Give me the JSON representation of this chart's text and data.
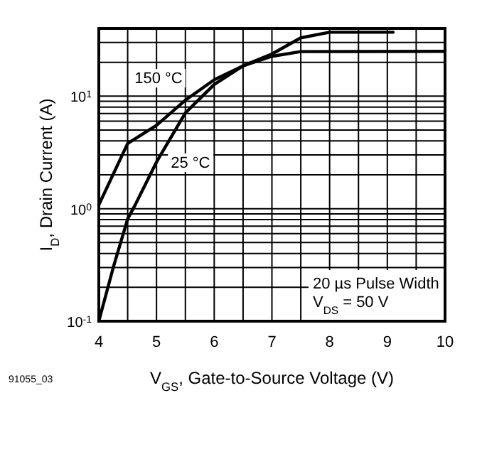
{
  "chart_data": {
    "type": "line",
    "xlabel": "V$_{GS}$, Gate-to-Source Voltage (V)",
    "ylabel": "I$_{D}$, Drain Current (A)",
    "log": "y",
    "grid": true,
    "line_style": "solid",
    "xlim": [
      4,
      10
    ],
    "ylim": [
      0.1,
      40
    ],
    "xticks": [
      4,
      {
        "value": 4.5,
        "label": null
      },
      5,
      {
        "value": 5.5,
        "label": null
      },
      6,
      {
        "value": 6.5,
        "label": null
      },
      7,
      {
        "value": 7.5,
        "label": null
      },
      8,
      {
        "value": 8.5,
        "label": null
      },
      9,
      {
        "value": 9.5,
        "label": null
      },
      10
    ],
    "yticks": [
      {
        "value": 0.1,
        "label": "10$^{-1}$"
      },
      {
        "value": 0.2,
        "label": null
      },
      {
        "value": 0.3,
        "label": null
      },
      {
        "value": 0.4,
        "label": null
      },
      {
        "value": 0.5,
        "label": null
      },
      {
        "value": 0.6,
        "label": null
      },
      {
        "value": 0.7,
        "label": null
      },
      {
        "value": 0.8,
        "label": null
      },
      {
        "value": 0.9,
        "label": null
      },
      {
        "value": 1,
        "label": "10$^{0}$"
      },
      {
        "value": 2,
        "label": null
      },
      {
        "value": 3,
        "label": null
      },
      {
        "value": 4,
        "label": null
      },
      {
        "value": 5,
        "label": null
      },
      {
        "value": 6,
        "label": null
      },
      {
        "value": 7,
        "label": null
      },
      {
        "value": 8,
        "label": null
      },
      {
        "value": 9,
        "label": null
      },
      {
        "value": 10,
        "label": "10$^{1}$"
      },
      {
        "value": 20,
        "label": null
      },
      {
        "value": 30,
        "label": null
      },
      {
        "value": 40,
        "label": null
      }
    ],
    "series": [
      {
        "name": "150 °C",
        "color": "#000000",
        "x": [
          4,
          4.5,
          5,
          5.5,
          6,
          6.5,
          7,
          7.5,
          8,
          9.1
        ],
        "values": [
          1.08,
          3.8,
          5.5,
          9.2,
          14,
          18.6,
          23.7,
          33,
          37,
          37
        ]
      },
      {
        "name": "25 °C",
        "color": "#000000",
        "x": [
          4,
          4.25,
          4.5,
          4.63,
          5,
          5.5,
          6,
          6.5,
          7,
          7.5,
          10
        ],
        "values": [
          0.1,
          0.3,
          0.81,
          1.08,
          2.6,
          7.1,
          12.7,
          18.6,
          22.6,
          24.9,
          25
        ]
      }
    ],
    "annotations": [
      "20 µs Pulse Width",
      "V$_{DS}$ = 50 V",
      "91055_03"
    ]
  }
}
